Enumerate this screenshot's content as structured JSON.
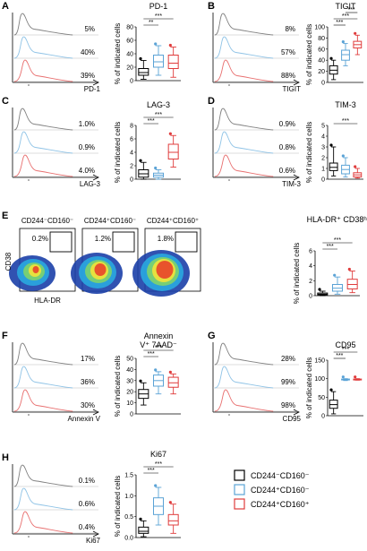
{
  "colors": {
    "black": "#000000",
    "blue": "#5ba3d6",
    "red": "#e03c3c",
    "hist_black": "#808080",
    "hist_blue": "#8fc3e6",
    "hist_red": "#e87070"
  },
  "ylabel": "% of indicated cells",
  "panels": [
    {
      "letter": "A",
      "marker": "PD-1",
      "title": "PD-1",
      "hist_pcts": [
        "5%",
        "40%",
        "39%"
      ],
      "yticks": [
        "0",
        "20",
        "40",
        "60",
        "80"
      ],
      "sig": [
        "**",
        "***"
      ]
    },
    {
      "letter": "B",
      "marker": "TIGIT",
      "title": "TIGIT",
      "hist_pcts": [
        "8%",
        "57%",
        "88%"
      ],
      "yticks": [
        "0",
        "20",
        "40",
        "60",
        "80",
        "100"
      ],
      "sig": [
        "***",
        "***",
        "***"
      ]
    },
    {
      "letter": "C",
      "marker": "LAG-3",
      "title": "LAG-3",
      "hist_pcts": [
        "1.0%",
        "0.9%",
        "4.0%"
      ],
      "yticks": [
        "0",
        "2",
        "4",
        "6",
        "8"
      ],
      "sig": [
        "***",
        "***"
      ]
    },
    {
      "letter": "D",
      "marker": "TIM-3",
      "title": "TIM-3",
      "hist_pcts": [
        "0.9%",
        "0.8%",
        "0.6%"
      ],
      "yticks": [
        "0",
        "1",
        "2",
        "3",
        "4",
        "5"
      ],
      "sig": [
        "***"
      ]
    },
    {
      "letter": "F",
      "marker": "Annexin V",
      "title": "Annexin V⁺ 7AAD⁻",
      "hist_pcts": [
        "17%",
        "36%",
        "30%"
      ],
      "yticks": [
        "0",
        "10",
        "20",
        "30",
        "40",
        "50"
      ],
      "sig": [
        "***",
        "***"
      ]
    },
    {
      "letter": "G",
      "marker": "CD95",
      "title": "CD95",
      "hist_pcts": [
        "28%",
        "99%",
        "98%"
      ],
      "yticks": [
        "0",
        "50",
        "100",
        "150"
      ],
      "sig": [
        "***",
        "***"
      ]
    },
    {
      "letter": "H",
      "marker": "Ki67",
      "title": "Ki67",
      "hist_pcts": [
        "0.1%",
        "0.6%",
        "0.4%"
      ],
      "yticks": [
        "0.0",
        "0.5",
        "1.0",
        "1.5"
      ],
      "sig": [
        "***",
        "***"
      ]
    }
  ],
  "panel_e": {
    "letter": "E",
    "groups": [
      "CD244⁻CD160⁻",
      "CD244⁺CD160⁻",
      "CD244⁺CD160⁺"
    ],
    "gate_pcts": [
      "0.2%",
      "1.2%",
      "1.8%"
    ],
    "xaxis": "HLA-DR",
    "yaxis": "CD38",
    "box_title": "HLA-DR⁺ CD38ʰⁱ",
    "yticks": [
      "0",
      "2",
      "4",
      "6"
    ],
    "sig": [
      "***",
      "***"
    ]
  },
  "legend": [
    {
      "label": "CD244⁻CD160⁻",
      "color": "#000000"
    },
    {
      "label": "CD244⁺CD160⁻",
      "color": "#5ba3d6"
    },
    {
      "label": "CD244⁺CD160⁺",
      "color": "#e03c3c"
    }
  ],
  "chart_data": [
    {
      "type": "box",
      "panel": "A",
      "title": "PD-1",
      "ylabel": "% of indicated cells",
      "ylim": [
        0,
        80
      ],
      "categories": [
        "CD244⁻CD160⁻",
        "CD244⁺CD160⁻",
        "CD244⁺CD160⁺"
      ],
      "series": [
        {
          "name": "CD244⁻CD160⁻",
          "min": 2,
          "q1": 8,
          "median": 12,
          "q3": 18,
          "max": 30
        },
        {
          "name": "CD244⁺CD160⁻",
          "min": 8,
          "q1": 20,
          "median": 28,
          "q3": 38,
          "max": 52
        },
        {
          "name": "CD244⁺CD160⁺",
          "min": 5,
          "q1": 18,
          "median": 26,
          "q3": 38,
          "max": 50
        }
      ]
    },
    {
      "type": "box",
      "panel": "B",
      "title": "TIGIT",
      "ylabel": "% of indicated cells",
      "ylim": [
        0,
        100
      ],
      "categories": [
        "CD244⁻CD160⁻",
        "CD244⁺CD160⁻",
        "CD244⁺CD160⁺"
      ],
      "series": [
        {
          "name": "CD244⁻CD160⁻",
          "min": 5,
          "q1": 15,
          "median": 22,
          "q3": 30,
          "max": 40
        },
        {
          "name": "CD244⁺CD160⁻",
          "min": 30,
          "q1": 40,
          "median": 50,
          "q3": 58,
          "max": 70
        },
        {
          "name": "CD244⁺CD160⁺",
          "min": 50,
          "q1": 62,
          "median": 68,
          "q3": 74,
          "max": 85
        }
      ]
    },
    {
      "type": "box",
      "panel": "C",
      "title": "LAG-3",
      "ylabel": "% of indicated cells",
      "ylim": [
        0,
        8
      ],
      "categories": [
        "CD244⁻CD160⁻",
        "CD244⁺CD160⁻",
        "CD244⁺CD160⁺"
      ],
      "series": [
        {
          "name": "CD244⁻CD160⁻",
          "min": 0,
          "q1": 0.3,
          "median": 0.8,
          "q3": 1.4,
          "max": 2.5
        },
        {
          "name": "CD244⁺CD160⁻",
          "min": 0,
          "q1": 0.3,
          "median": 0.6,
          "q3": 0.9,
          "max": 1.4
        },
        {
          "name": "CD244⁺CD160⁺",
          "min": 1.8,
          "q1": 3,
          "median": 4,
          "q3": 5.2,
          "max": 6.5
        }
      ]
    },
    {
      "type": "box",
      "panel": "D",
      "title": "TIM-3",
      "ylabel": "% of indicated cells",
      "ylim": [
        0,
        5
      ],
      "categories": [
        "CD244⁻CD160⁻",
        "CD244⁺CD160⁻",
        "CD244⁺CD160⁺"
      ],
      "series": [
        {
          "name": "CD244⁻CD160⁻",
          "min": 0.3,
          "q1": 0.8,
          "median": 1.1,
          "q3": 1.5,
          "max": 3
        },
        {
          "name": "CD244⁺CD160⁻",
          "min": 0.2,
          "q1": 0.5,
          "median": 0.9,
          "q3": 1.3,
          "max": 2
        },
        {
          "name": "CD244⁺CD160⁺",
          "min": 0.1,
          "q1": 0.2,
          "median": 0.4,
          "q3": 0.6,
          "max": 1
        }
      ]
    },
    {
      "type": "box",
      "panel": "E",
      "title": "HLA-DR⁺ CD38ʰⁱ",
      "ylabel": "% of indicated cells",
      "ylim": [
        0,
        6
      ],
      "categories": [
        "CD244⁻CD160⁻",
        "CD244⁺CD160⁻",
        "CD244⁺CD160⁺"
      ],
      "series": [
        {
          "name": "CD244⁻CD160⁻",
          "min": 0,
          "q1": 0.1,
          "median": 0.2,
          "q3": 0.35,
          "max": 0.6
        },
        {
          "name": "CD244⁺CD160⁻",
          "min": 0.2,
          "q1": 0.6,
          "median": 1,
          "q3": 1.5,
          "max": 2.5
        },
        {
          "name": "CD244⁺CD160⁺",
          "min": 0.4,
          "q1": 0.9,
          "median": 1.5,
          "q3": 2.2,
          "max": 3.3
        }
      ]
    },
    {
      "type": "box",
      "panel": "F",
      "title": "Annexin V⁺ 7AAD⁻",
      "ylabel": "% of indicated cells",
      "ylim": [
        0,
        50
      ],
      "categories": [
        "CD244⁻CD160⁻",
        "CD244⁺CD160⁻",
        "CD244⁺CD160⁺"
      ],
      "series": [
        {
          "name": "CD244⁻CD160⁻",
          "min": 8,
          "q1": 14,
          "median": 18,
          "q3": 22,
          "max": 28
        },
        {
          "name": "CD244⁺CD160⁻",
          "min": 18,
          "q1": 25,
          "median": 30,
          "q3": 35,
          "max": 38
        },
        {
          "name": "CD244⁺CD160⁺",
          "min": 18,
          "q1": 24,
          "median": 28,
          "q3": 33,
          "max": 36
        }
      ]
    },
    {
      "type": "box",
      "panel": "G",
      "title": "CD95",
      "ylabel": "% of indicated cells",
      "ylim": [
        0,
        150
      ],
      "categories": [
        "CD244⁻CD160⁻",
        "CD244⁺CD160⁻",
        "CD244⁺CD160⁺"
      ],
      "series": [
        {
          "name": "CD244⁻CD160⁻",
          "min": 5,
          "q1": 20,
          "median": 30,
          "q3": 42,
          "max": 65
        },
        {
          "name": "CD244⁺CD160⁻",
          "min": 95,
          "q1": 97,
          "median": 98,
          "q3": 99,
          "max": 100
        },
        {
          "name": "CD244⁺CD160⁺",
          "min": 96,
          "q1": 97,
          "median": 98,
          "q3": 99,
          "max": 100
        }
      ]
    },
    {
      "type": "box",
      "panel": "H",
      "title": "Ki67",
      "ylabel": "% of indicated cells",
      "ylim": [
        0,
        1.5
      ],
      "categories": [
        "CD244⁻CD160⁻",
        "CD244⁺CD160⁻",
        "CD244⁺CD160⁺"
      ],
      "series": [
        {
          "name": "CD244⁻CD160⁻",
          "min": 0.02,
          "q1": 0.1,
          "median": 0.15,
          "q3": 0.25,
          "max": 0.4
        },
        {
          "name": "CD244⁺CD160⁻",
          "min": 0.3,
          "q1": 0.55,
          "median": 0.75,
          "q3": 0.95,
          "max": 1.2
        },
        {
          "name": "CD244⁺CD160⁺",
          "min": 0.1,
          "q1": 0.3,
          "median": 0.4,
          "q3": 0.55,
          "max": 0.8
        }
      ]
    }
  ]
}
